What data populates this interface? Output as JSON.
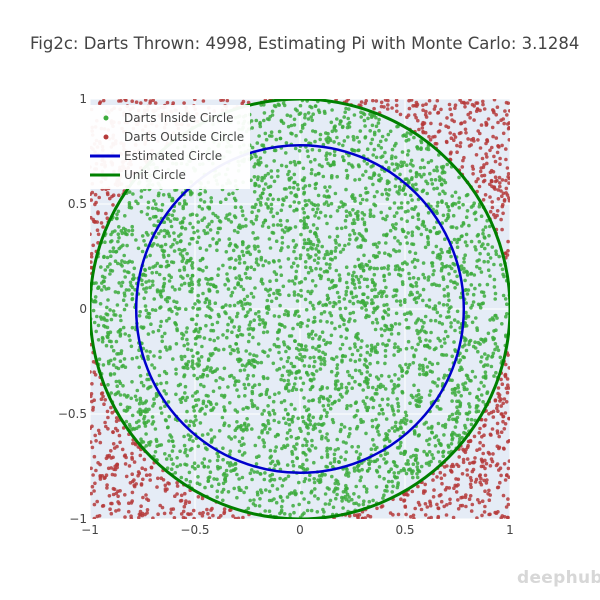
{
  "chart_data": {
    "type": "scatter",
    "title": "Fig2c: Darts Thrown: 4998, Estimating Pi with Monte Carlo: 3.1284",
    "xlabel": "",
    "ylabel": "",
    "xlim": [
      -1,
      1
    ],
    "ylim": [
      -1,
      1
    ],
    "x_ticks": [
      -1,
      -0.5,
      0,
      0.5,
      1
    ],
    "y_ticks": [
      -1,
      -0.5,
      0,
      0.5,
      1
    ],
    "x_tick_labels": [
      "−1",
      "−0.5",
      "0",
      "0.5",
      "1"
    ],
    "y_tick_labels": [
      "−1",
      "−0.5",
      "0",
      "0.5",
      "1"
    ],
    "grid": true,
    "legend_position": "top-left",
    "darts_thrown": 4998,
    "pi_estimate": 3.1284,
    "series": [
      {
        "name": "Darts Inside Circle",
        "mode": "markers",
        "color": "#3cab3c",
        "region": "inside unit circle"
      },
      {
        "name": "Darts Outside Circle",
        "mode": "markers",
        "color": "#b53a3a",
        "region": "outside unit circle"
      },
      {
        "name": "Estimated Circle",
        "mode": "lines",
        "color": "#0000cc",
        "center": [
          0,
          0
        ],
        "radius": 0.78
      },
      {
        "name": "Unit Circle",
        "mode": "lines",
        "color": "#008000",
        "center": [
          0,
          0
        ],
        "radius": 1.0
      }
    ]
  },
  "watermark": "deephub",
  "colors": {
    "plot_background": "#e5ecf6",
    "grid": "#ffffff"
  }
}
